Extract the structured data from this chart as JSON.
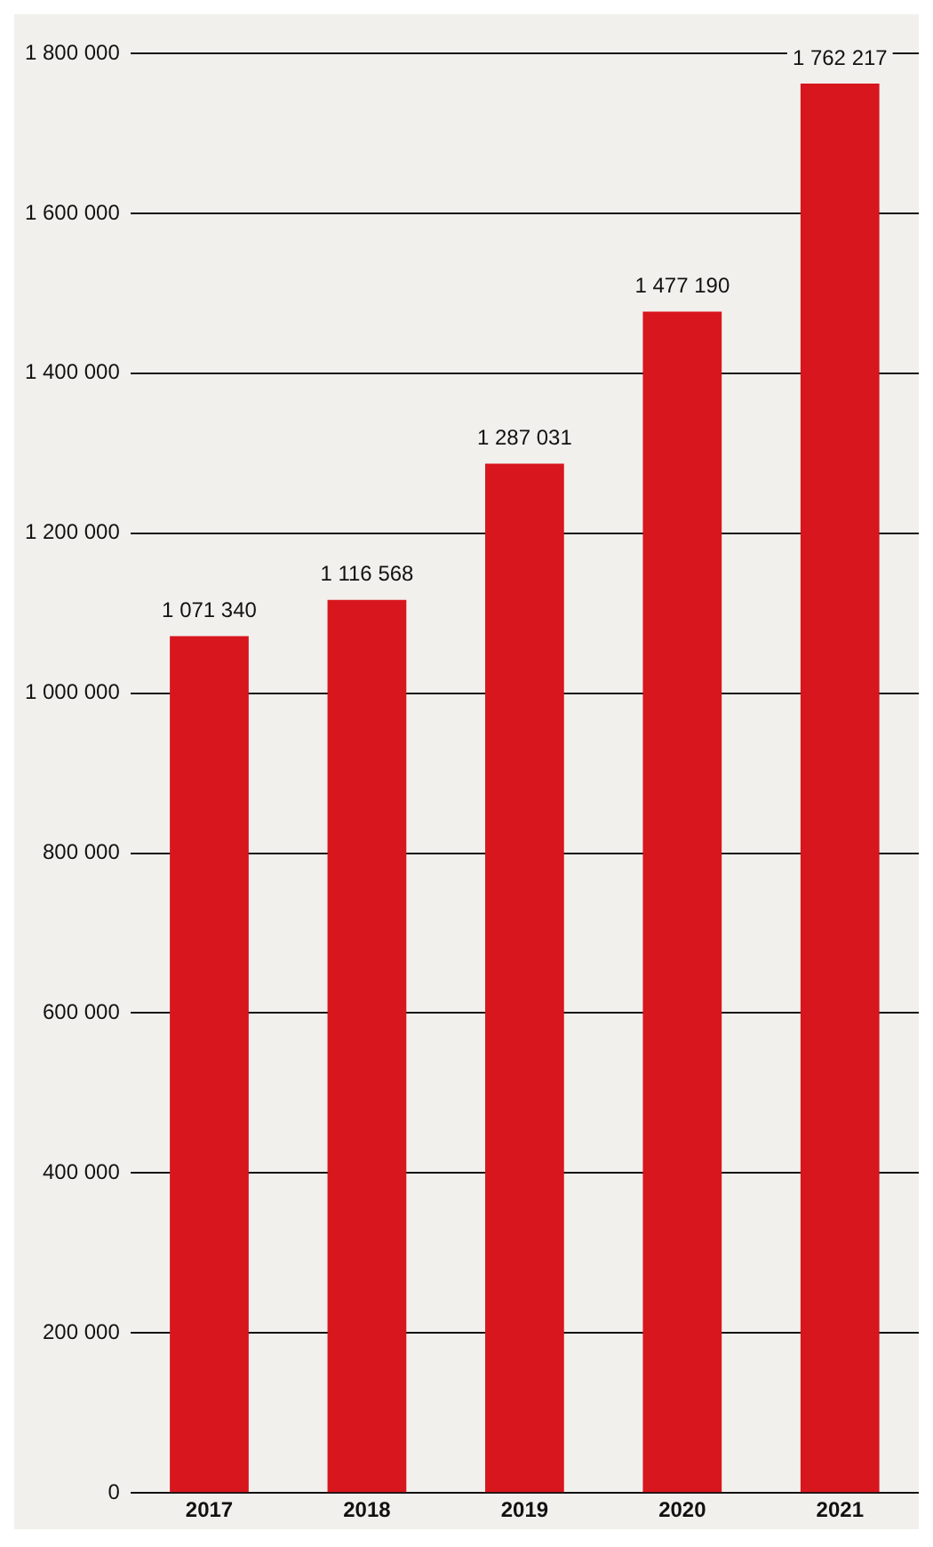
{
  "chart_data": {
    "type": "bar",
    "categories": [
      "2017",
      "2018",
      "2019",
      "2020",
      "2021"
    ],
    "values": [
      1071340,
      1116568,
      1287031,
      1477190,
      1762217
    ],
    "value_labels": [
      "1 071 340",
      "1 116 568",
      "1 287 031",
      "1 477 190",
      "1 762 217"
    ],
    "color": "#d7161e",
    "ylim": [
      0,
      1800000
    ],
    "yticks": [
      {
        "value": 0,
        "label": "0"
      },
      {
        "value": 200000,
        "label": "200 000"
      },
      {
        "value": 400000,
        "label": "400 000"
      },
      {
        "value": 600000,
        "label": "600 000"
      },
      {
        "value": 800000,
        "label": "800 000"
      },
      {
        "value": 1000000,
        "label": "1 000 000"
      },
      {
        "value": 1200000,
        "label": "1 200 000"
      },
      {
        "value": 1400000,
        "label": "1 400 000"
      },
      {
        "value": 1600000,
        "label": "1 600 000"
      },
      {
        "value": 1800000,
        "label": "1 800 000"
      }
    ],
    "grid": "y",
    "legend": false
  }
}
